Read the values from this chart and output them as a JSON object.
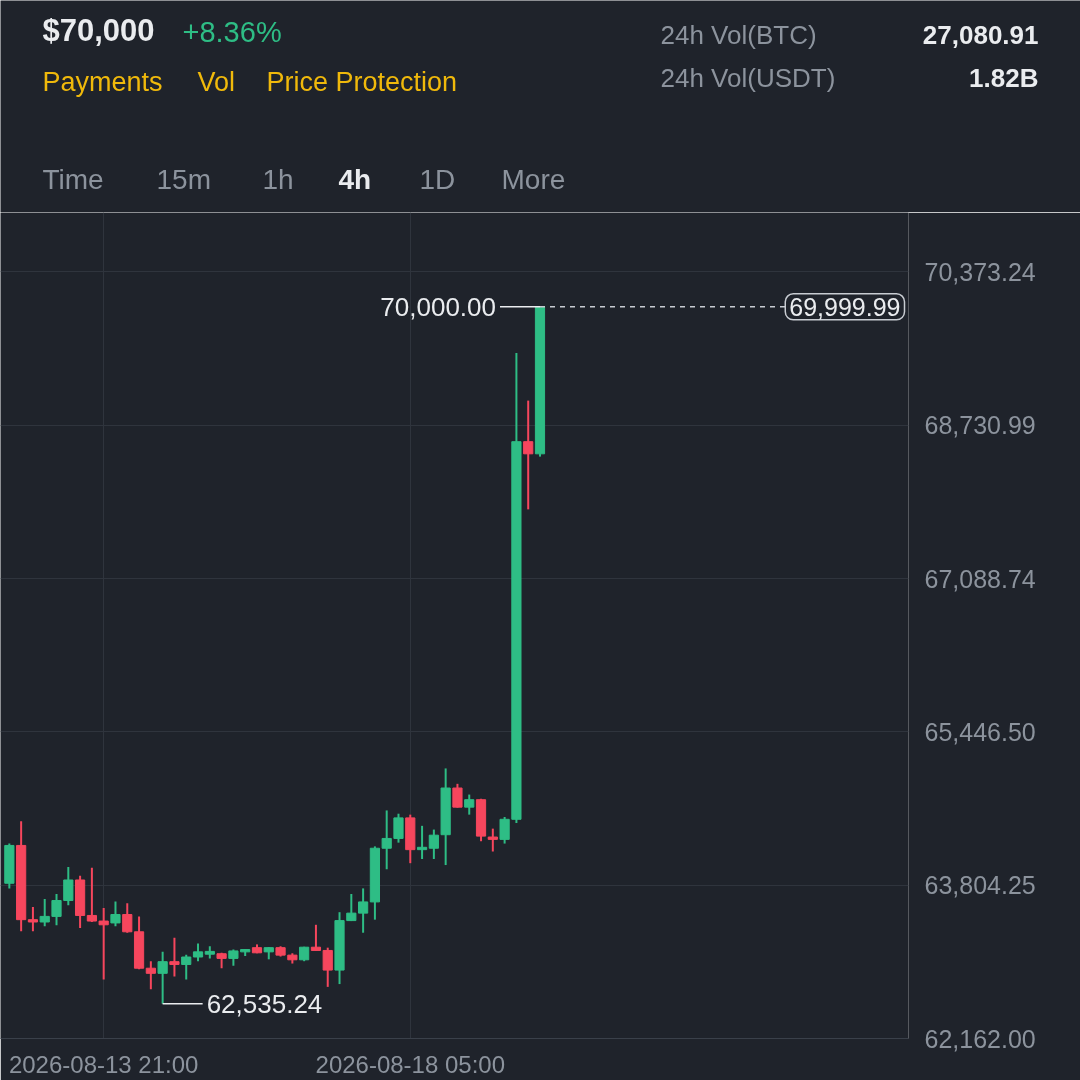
{
  "chart_data": {
    "type": "candlestick",
    "title": "$70,000",
    "subtitle": "+8.36%",
    "annotations": [
      "Payments",
      "Vol",
      "Price Protection",
      "24h Vol(BTC)",
      "27,080.91",
      "24h Vol(USDT)",
      "1.82B",
      "Time",
      "15m",
      "1h",
      "4h",
      "1D",
      "More",
      {
        "text": "70,000.00",
        "x": "2026-08-20T01:00",
        "y": 70000.0
      },
      {
        "text": "62,535.24",
        "x": "2026-08-14T17:00",
        "y": 62535.24
      }
    ],
    "x": [
      "2026-08-12T13:00",
      "2026-08-12T17:00",
      "2026-08-12T21:00",
      "2026-08-13T01:00",
      "2026-08-13T05:00",
      "2026-08-13T09:00",
      "2026-08-13T13:00",
      "2026-08-13T17:00",
      "2026-08-13T21:00",
      "2026-08-14T01:00",
      "2026-08-14T05:00",
      "2026-08-14T09:00",
      "2026-08-14T13:00",
      "2026-08-14T17:00",
      "2026-08-14T21:00",
      "2026-08-15T01:00",
      "2026-08-15T05:00",
      "2026-08-15T09:00",
      "2026-08-15T13:00",
      "2026-08-15T17:00",
      "2026-08-15T21:00",
      "2026-08-16T01:00",
      "2026-08-16T05:00",
      "2026-08-16T09:00",
      "2026-08-16T13:00",
      "2026-08-16T17:00",
      "2026-08-16T21:00",
      "2026-08-17T01:00",
      "2026-08-17T05:00",
      "2026-08-17T09:00",
      "2026-08-17T13:00",
      "2026-08-17T17:00",
      "2026-08-17T21:00",
      "2026-08-18T01:00",
      "2026-08-18T05:00",
      "2026-08-18T09:00",
      "2026-08-18T13:00",
      "2026-08-18T17:00",
      "2026-08-18T21:00",
      "2026-08-19T01:00",
      "2026-08-19T05:00",
      "2026-08-19T09:00",
      "2026-08-19T13:00",
      "2026-08-19T17:00",
      "2026-08-19T21:00",
      "2026-08-20T01:00"
    ],
    "ohlc": [
      [
        63825,
        64250,
        63770,
        64230
      ],
      [
        64230,
        64490,
        63310,
        63435
      ],
      [
        63435,
        63570,
        63310,
        63410
      ],
      [
        63410,
        63655,
        63365,
        63470
      ],
      [
        63470,
        63710,
        63375,
        63640
      ],
      [
        63640,
        64000,
        63590,
        63860
      ],
      [
        63860,
        63905,
        63345,
        63480
      ],
      [
        63480,
        63990,
        63410,
        63420
      ],
      [
        63420,
        63560,
        62795,
        63380
      ],
      [
        63400,
        63630,
        63365,
        63490
      ],
      [
        63490,
        63610,
        63295,
        63305
      ],
      [
        63305,
        63470,
        62905,
        62915
      ],
      [
        62915,
        62990,
        62690,
        62860
      ],
      [
        62860,
        63090,
        62535.24,
        62985
      ],
      [
        62985,
        63240,
        62825,
        62955
      ],
      [
        62955,
        63060,
        62795,
        63035
      ],
      [
        63035,
        63180,
        62990,
        63090
      ],
      [
        63065,
        63150,
        63020,
        63095
      ],
      [
        63070,
        63080,
        62915,
        63020
      ],
      [
        63020,
        63115,
        62940,
        63100
      ],
      [
        63090,
        63120,
        63045,
        63115
      ],
      [
        63135,
        63170,
        63075,
        63080
      ],
      [
        63090,
        63140,
        63010,
        63135
      ],
      [
        63135,
        63150,
        63040,
        63055
      ],
      [
        63055,
        63075,
        62965,
        63005
      ],
      [
        63005,
        63145,
        62990,
        63140
      ],
      [
        63140,
        63380,
        63100,
        63105
      ],
      [
        63105,
        63135,
        62715,
        62895
      ],
      [
        62895,
        63515,
        62745,
        63425
      ],
      [
        63425,
        63710,
        63420,
        63505
      ],
      [
        63505,
        63770,
        63295,
        63625
      ],
      [
        63625,
        64220,
        63435,
        64200
      ],
      [
        64200,
        64605,
        63975,
        64305
      ],
      [
        64305,
        64570,
        64260,
        64525
      ],
      [
        64525,
        64560,
        64040,
        64185
      ],
      [
        64185,
        64440,
        64085,
        64210
      ],
      [
        64200,
        64400,
        64085,
        64340
      ],
      [
        64345,
        65055,
        64020,
        64845
      ],
      [
        64845,
        64890,
        64635,
        64640
      ],
      [
        64640,
        64775,
        64560,
        64720
      ],
      [
        64720,
        64730,
        64275,
        64330
      ],
      [
        64320,
        64410,
        64165,
        64295
      ],
      [
        64295,
        64535,
        64250,
        64510
      ],
      [
        64510,
        69505,
        64470,
        68555
      ],
      [
        68555,
        68995,
        67830,
        68425
      ],
      [
        68425,
        70000.0,
        68395,
        69999.99
      ]
    ],
    "colors": [
      "#2ebd85",
      "#f6465d",
      "#f6465d",
      "#2ebd85",
      "#2ebd85",
      "#2ebd85",
      "#f6465d",
      "#f6465d",
      "#f6465d",
      "#2ebd85",
      "#f6465d",
      "#f6465d",
      "#f6465d",
      "#2ebd85",
      "#f6465d",
      "#2ebd85",
      "#2ebd85",
      "#2ebd85",
      "#f6465d",
      "#2ebd85",
      "#2ebd85",
      "#f6465d",
      "#2ebd85",
      "#f6465d",
      "#f6465d",
      "#2ebd85",
      "#f6465d",
      "#f6465d",
      "#2ebd85",
      "#2ebd85",
      "#2ebd85",
      "#2ebd85",
      "#2ebd85",
      "#2ebd85",
      "#f6465d",
      "#2ebd85",
      "#2ebd85",
      "#2ebd85",
      "#f6465d",
      "#2ebd85",
      "#f6465d",
      "#f6465d",
      "#2ebd85",
      "#2ebd85",
      "#f6465d",
      "#2ebd85"
    ],
    "xlim": [
      "2026-08-12T10:00",
      "2026-08-25T06:00"
    ],
    "xticks": [
      {
        "value": "2026-08-13T21:00",
        "label": "2026-08-13 21:00"
      },
      {
        "value": "2026-08-18T05:00",
        "label": "2026-08-18 05:00"
      }
    ],
    "ylim": [
      62162.0,
      71010
    ],
    "yticks": [
      {
        "value": 62162.0,
        "label": "62,162.00"
      },
      {
        "value": 63804.25,
        "label": "63,804.25"
      },
      {
        "value": 65446.5,
        "label": "65,446.50"
      },
      {
        "value": 67088.74,
        "label": "67,088.74"
      },
      {
        "value": 68730.99,
        "label": "68,730.99"
      },
      {
        "value": 70373.24,
        "label": "70,373.24"
      }
    ],
    "ref_lines": [
      {
        "axis": "y",
        "value": 69999.99,
        "label": "69,999.99",
        "color": "#c8ccd2",
        "line_style": "dashed"
      }
    ],
    "grid": true
  }
}
